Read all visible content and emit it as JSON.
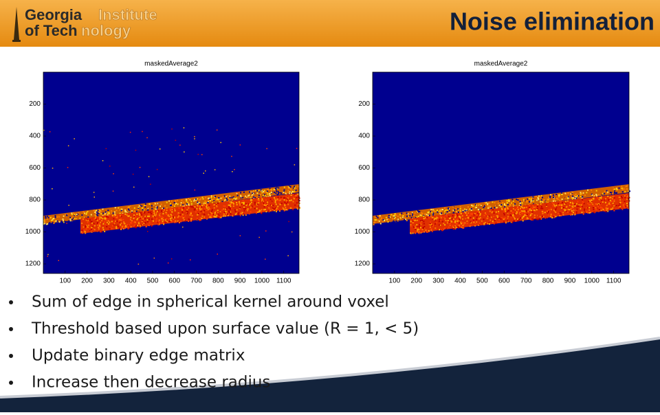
{
  "header": {
    "logo": [
      "Georgia",
      "Institute",
      "of Tech",
      "nology"
    ],
    "title": "Noise elimination"
  },
  "figures": [
    {
      "title": "maskedAverage2",
      "xlim": [
        0,
        1170
      ],
      "ylim": [
        0,
        1260
      ],
      "xticks": [
        100,
        200,
        300,
        400,
        500,
        600,
        700,
        800,
        900,
        1000,
        1100
      ],
      "yticks": [
        200,
        400,
        600,
        800,
        1000,
        1200
      ]
    },
    {
      "title": "maskedAverage2",
      "xlim": [
        0,
        1170
      ],
      "ylim": [
        0,
        1260
      ],
      "xticks": [
        100,
        200,
        300,
        400,
        500,
        600,
        700,
        800,
        900,
        1000,
        1100
      ],
      "yticks": [
        200,
        400,
        600,
        800,
        1000,
        1200
      ]
    }
  ],
  "bullets": [
    "Sum of edge in spherical kernel around voxel",
    "Threshold based upon surface value (R = 1, < 5)",
    "Update binary edge matrix",
    "Increase then decrease radius"
  ]
}
